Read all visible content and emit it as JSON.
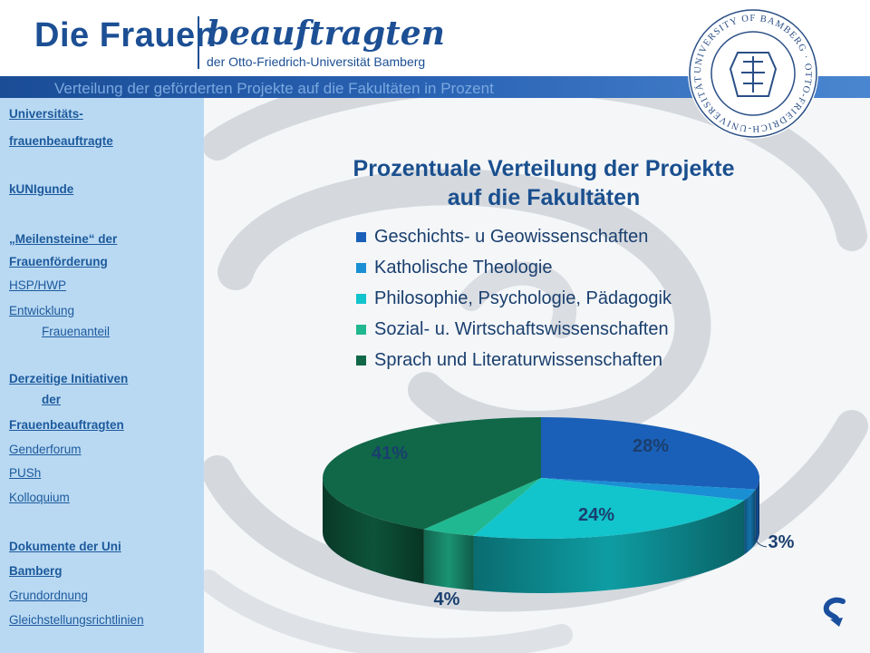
{
  "header": {
    "logo_main": "Die Frauen",
    "logo_script": "beauftragten",
    "logo_sub": "der Otto-Friedrich-Universität Bamberg",
    "title": "Verteilung der geförderten Projekte auf die Fakultäten in Prozent",
    "seal_text": "UNIVERSITY OF BAMBERG · OTTO-FRIEDRICH-UNIVERSITÄT BAMBERG"
  },
  "sidebar": {
    "items": [
      {
        "label": "Universitäts-",
        "bold": true
      },
      {
        "label": "frauenbeauftragte",
        "bold": true
      },
      {
        "label": "kUNIgunde",
        "bold": true
      },
      {
        "label": "„Meilensteine“ der",
        "bold": true
      },
      {
        "label": "Frauenförderung",
        "bold": true
      },
      {
        "label": "HSP/HWP",
        "bold": false
      },
      {
        "label": "Entwicklung",
        "bold": false
      },
      {
        "label": "Frauenanteil",
        "bold": false
      },
      {
        "label": "Derzeitige Initiativen",
        "bold": true
      },
      {
        "label": "der",
        "bold": true
      },
      {
        "label": "Frauenbeauftragten",
        "bold": true
      },
      {
        "label": "Genderforum",
        "bold": false
      },
      {
        "label": "PUSh",
        "bold": false
      },
      {
        "label": "Kolloquium",
        "bold": false
      },
      {
        "label": "Dokumente der Uni",
        "bold": true
      },
      {
        "label": "Bamberg",
        "bold": true
      },
      {
        "label": "Grundordnung",
        "bold": false
      },
      {
        "label": "Gleichstellungsrichtlinien",
        "bold": false
      }
    ]
  },
  "chart_data": {
    "type": "pie",
    "title": "Prozentuale Verteilung der Projekte auf die Fakultäten",
    "title_lines": [
      "Prozentuale Verteilung der Projekte",
      "auf die Fakultäten"
    ],
    "legend_position": "top",
    "slices": [
      {
        "name": "Geschichts- u Geowissenschaften",
        "value": 28,
        "label": "28%",
        "color": "#1a60b8"
      },
      {
        "name": "Katholische Theologie",
        "value": 3,
        "label": "3%",
        "color": "#1a8fd4"
      },
      {
        "name": "Philosophie, Psychologie, Pädagogik",
        "value": 24,
        "label": "24%",
        "color": "#12c4cc"
      },
      {
        "name": "Sozial- u. Wirtschaftswissenschaften",
        "value": 4,
        "label": "4%",
        "color": "#20b890"
      },
      {
        "name": "Sprach und Literaturwissenschaften",
        "value": 41,
        "label": "41%",
        "color": "#106848"
      }
    ]
  }
}
